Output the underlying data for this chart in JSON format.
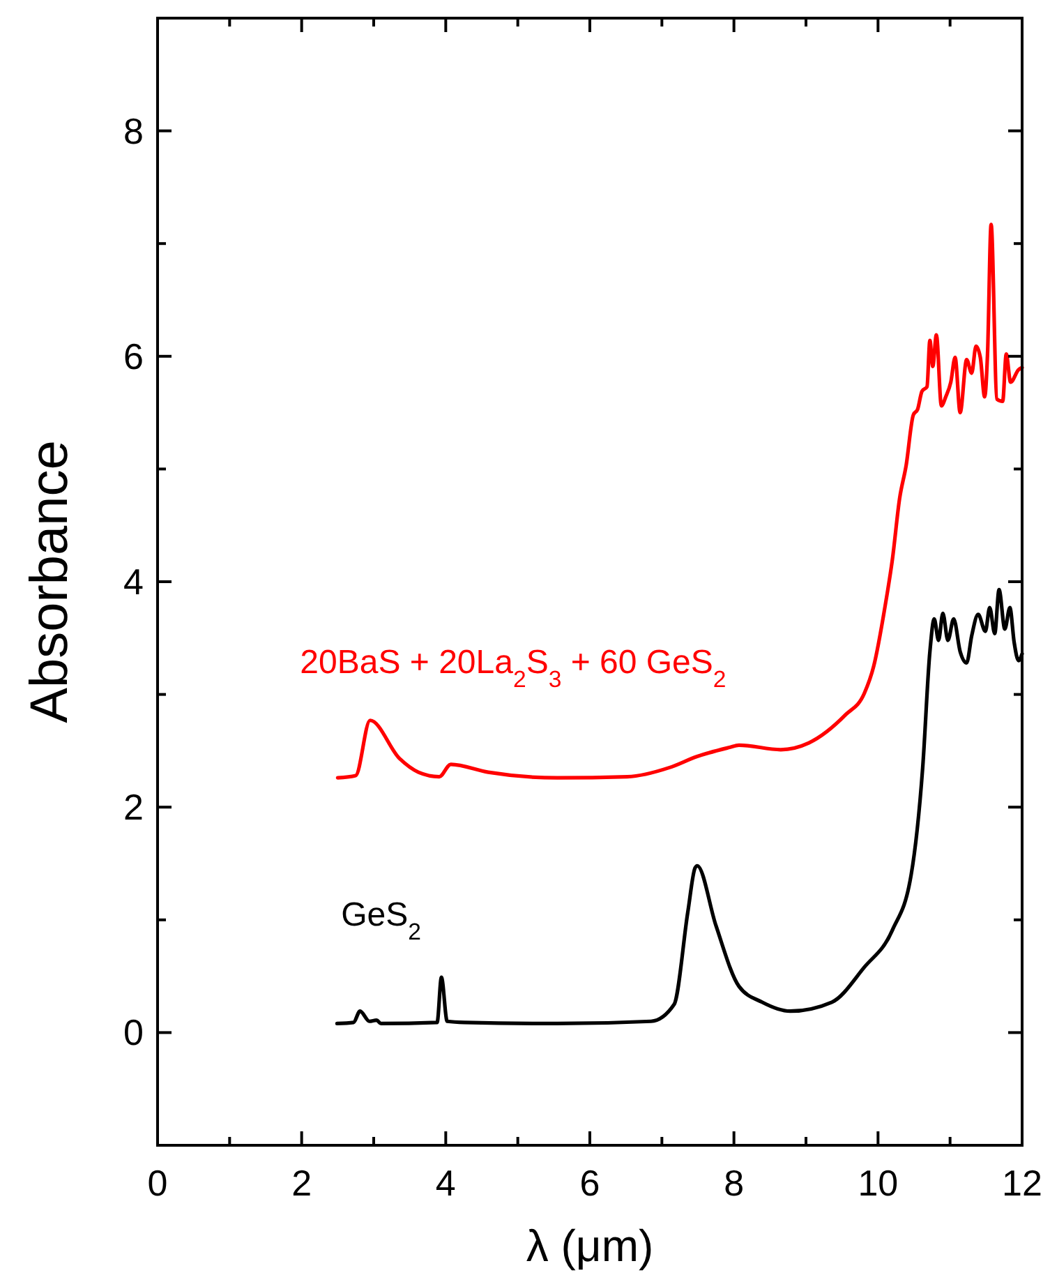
{
  "chart_data": {
    "type": "line",
    "xlabel": "λ (μm)",
    "ylabel": "Absorbance",
    "xlim": [
      0,
      12
    ],
    "ylim": [
      -1,
      9
    ],
    "xticks": [
      0,
      {
        "value": 1,
        "label": null
      },
      2,
      {
        "value": 3,
        "label": null
      },
      4,
      {
        "value": 5,
        "label": null
      },
      6,
      {
        "value": 7,
        "label": null
      },
      8,
      {
        "value": 9,
        "label": null
      },
      10,
      {
        "value": 11,
        "label": null
      },
      12
    ],
    "yticks": [
      0,
      {
        "value": 1,
        "label": null
      },
      2,
      {
        "value": 3,
        "label": null
      },
      4,
      {
        "value": 5,
        "label": null
      },
      6,
      {
        "value": 7,
        "label": null
      },
      8
    ],
    "grid": false,
    "marker": "none",
    "line_style": "solid",
    "series": [
      {
        "name": "20BaS + 20La$_{2}$S$_{3}$ + 60 GeS$_{2}$",
        "color": "#ff0000",
        "x": [
          2.5,
          2.75,
          2.95,
          3.36,
          3.62,
          3.91,
          4.07,
          4.59,
          5.55,
          6.52,
          7.1,
          7.49,
          7.94,
          8.07,
          8.65,
          9.04,
          9.55,
          9.81,
          9.94,
          10.1,
          10.2,
          10.3,
          10.39,
          10.49,
          10.55,
          10.61,
          10.68,
          10.72,
          10.76,
          10.81,
          10.88,
          10.94,
          11.01,
          11.07,
          11.14,
          11.23,
          11.3,
          11.36,
          11.42,
          11.48,
          11.52,
          11.57,
          11.65,
          11.73,
          11.78,
          11.84,
          11.95,
          12
        ],
        "values": [
          2.26,
          2.28,
          2.77,
          2.43,
          2.31,
          2.27,
          2.38,
          2.31,
          2.26,
          2.27,
          2.35,
          2.45,
          2.53,
          2.55,
          2.51,
          2.57,
          2.82,
          3.01,
          3.25,
          3.79,
          4.2,
          4.74,
          5.03,
          5.48,
          5.53,
          5.69,
          5.73,
          6.14,
          5.91,
          6.19,
          5.56,
          5.64,
          5.77,
          5.99,
          5.5,
          5.97,
          5.85,
          6.09,
          5.99,
          5.64,
          6.02,
          7.17,
          5.62,
          5.6,
          6.02,
          5.77,
          5.88,
          5.9
        ]
      },
      {
        "name": "GeS$_{2}$",
        "color": "#000000",
        "x": [
          2.49,
          2.72,
          2.81,
          2.94,
          3.04,
          3.1,
          3.88,
          3.94,
          4.02,
          4.26,
          5.55,
          6.85,
          7.17,
          7.36,
          7.46,
          7.49,
          7.75,
          8.07,
          8.39,
          8.78,
          9.36,
          9.81,
          10.2,
          10.46,
          10.62,
          10.72,
          10.78,
          10.84,
          10.9,
          10.97,
          11.05,
          11.14,
          11.23,
          11.3,
          11.39,
          11.49,
          11.55,
          11.62,
          11.68,
          11.76,
          11.83,
          11.89,
          11.95,
          12
        ],
        "values": [
          0.08,
          0.09,
          0.19,
          0.1,
          0.11,
          0.08,
          0.09,
          0.49,
          0.1,
          0.09,
          0.08,
          0.1,
          0.25,
          1.07,
          1.46,
          1.48,
          0.95,
          0.41,
          0.27,
          0.19,
          0.27,
          0.58,
          0.91,
          1.4,
          2.35,
          3.38,
          3.67,
          3.48,
          3.72,
          3.48,
          3.67,
          3.38,
          3.28,
          3.52,
          3.71,
          3.56,
          3.77,
          3.54,
          3.93,
          3.58,
          3.77,
          3.46,
          3.3,
          3.36
        ]
      }
    ]
  }
}
